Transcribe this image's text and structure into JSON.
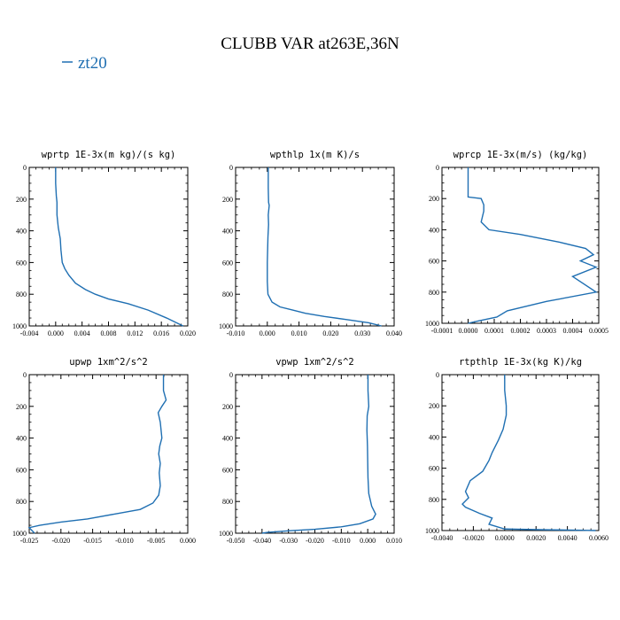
{
  "figure": {
    "title": "CLUBB VAR at263E,36N",
    "legend": "zt20",
    "series_color": "#1f6fb2"
  },
  "chart_data": [
    {
      "type": "line",
      "title": "wprtp  1E-3x(m kg)/(s kg)",
      "xlim": [
        -0.004,
        0.02
      ],
      "ylim": [
        1000,
        0
      ],
      "x_ticks": [
        "-0.004",
        "0.000",
        "0.004",
        "0.008",
        "0.012",
        "0.016",
        "0.020"
      ],
      "y_ticks": [
        "0",
        "200",
        "400",
        "600",
        "800",
        "1000"
      ],
      "series": [
        {
          "x": [
            0.0,
            0.0,
            0.0,
            0.0001,
            0.0002,
            0.0002,
            0.0004,
            0.0007,
            0.0008,
            0.001,
            0.0014,
            0.002,
            0.003,
            0.0045,
            0.006,
            0.008,
            0.011,
            0.014,
            0.0168,
            0.0188,
            0.0193
          ],
          "y": [
            0,
            50,
            100,
            180,
            220,
            300,
            380,
            450,
            520,
            600,
            640,
            680,
            730,
            770,
            800,
            830,
            860,
            900,
            950,
            990,
            1000
          ]
        }
      ]
    },
    {
      "type": "line",
      "title": "wpthlp  1x(m K)/s",
      "xlim": [
        -0.01,
        0.04
      ],
      "ylim": [
        1000,
        0
      ],
      "x_ticks": [
        "-0.010",
        "0.000",
        "0.010",
        "0.020",
        "0.030",
        "0.040"
      ],
      "y_ticks": [
        "0",
        "200",
        "400",
        "600",
        "800",
        "1000"
      ],
      "series": [
        {
          "x": [
            0.0003,
            0.0003,
            0.0003,
            0.0004,
            0.0006,
            0.0003,
            0.0004,
            0.0002,
            0.0001,
            0.0,
            0.0,
            0.0,
            0.0002,
            0.0015,
            0.004,
            0.008,
            0.012,
            0.018,
            0.025,
            0.032,
            0.036
          ],
          "y": [
            0,
            60,
            130,
            220,
            240,
            300,
            360,
            440,
            520,
            600,
            650,
            720,
            800,
            850,
            880,
            900,
            920,
            940,
            960,
            980,
            1000
          ]
        }
      ]
    },
    {
      "type": "line",
      "title": "wprcp  1E-3x(m/s) (kg/kg)",
      "xlim": [
        -0.0001,
        0.0005
      ],
      "ylim": [
        1000,
        0
      ],
      "x_ticks": [
        "-0.0001",
        "0.0000",
        "0.0001",
        "0.0002",
        "0.0003",
        "0.0004",
        "0.0005"
      ],
      "y_ticks": [
        "0",
        "200",
        "400",
        "600",
        "800",
        "1000"
      ],
      "series": [
        {
          "x": [
            0.0,
            0.0,
            0.0,
            5e-05,
            6e-05,
            6e-05,
            5e-05,
            8e-05,
            0.0002,
            0.00035,
            0.00045,
            0.00048,
            0.00043,
            0.00049,
            0.0004,
            0.00049,
            0.0003,
            0.00015,
            0.00011,
            4e-05,
            0.0
          ],
          "y": [
            0,
            100,
            190,
            200,
            240,
            280,
            350,
            400,
            430,
            480,
            520,
            560,
            600,
            640,
            700,
            800,
            860,
            920,
            960,
            985,
            1000
          ]
        }
      ]
    },
    {
      "type": "line",
      "title": "upwp  1xm^2/s^2",
      "xlim": [
        -0.025,
        0.005
      ],
      "ylim": [
        1000,
        0
      ],
      "x_ticks": [
        "-0.025",
        "-0.020",
        "-0.015",
        "-0.010",
        "-0.005",
        "0.000"
      ],
      "y_ticks": [
        "0",
        "200",
        "400",
        "600",
        "800",
        "1000"
      ],
      "series": [
        {
          "x": [
            0.0004,
            0.0004,
            0.0009,
            0.0001,
            -0.0006,
            -0.0002,
            0.0001,
            -0.0003,
            -0.0005,
            -0.0002,
            -0.0004,
            -0.0002,
            -0.0005,
            -0.0016,
            -0.004,
            -0.009,
            -0.014,
            -0.019,
            -0.023,
            -0.025,
            -0.024
          ],
          "y": [
            0,
            100,
            160,
            200,
            240,
            300,
            400,
            450,
            500,
            560,
            620,
            700,
            760,
            810,
            850,
            880,
            910,
            930,
            950,
            965,
            1000
          ]
        }
      ]
    },
    {
      "type": "line",
      "title": "vpwp  1xm^2/s^2",
      "xlim": [
        -0.05,
        0.01
      ],
      "ylim": [
        1000,
        0
      ],
      "x_ticks": [
        "-0.050",
        "-0.040",
        "-0.030",
        "-0.020",
        "-0.010",
        "0.000",
        "0.010"
      ],
      "y_ticks": [
        "0",
        "200",
        "400",
        "600",
        "800",
        "1000"
      ],
      "series": [
        {
          "x": [
            0.0001,
            0.0001,
            0.0004,
            -0.0002,
            -0.0003,
            -0.0001,
            0.0,
            0.0001,
            0.0004,
            0.0015,
            0.003,
            0.002,
            -0.003,
            -0.01,
            -0.02,
            -0.03,
            -0.038,
            -0.04
          ],
          "y": [
            0,
            100,
            200,
            260,
            350,
            450,
            550,
            650,
            750,
            830,
            880,
            910,
            940,
            960,
            975,
            985,
            995,
            1000
          ]
        }
      ]
    },
    {
      "type": "line",
      "title": "rtpthlp  1E-3x(kg K)/kg",
      "xlim": [
        -0.004,
        0.006
      ],
      "ylim": [
        1000,
        0
      ],
      "x_ticks": [
        "-0.0040",
        "-0.0020",
        "0.0000",
        "0.0020",
        "0.0040",
        "0.0060"
      ],
      "y_ticks": [
        "0",
        "200",
        "400",
        "600",
        "800",
        "1000"
      ],
      "series": [
        {
          "x": [
            0.0,
            0.0,
            0.0001,
            0.0001,
            -0.0001,
            -0.0004,
            -0.0008,
            -0.001,
            -0.0014,
            -0.0022,
            -0.0025,
            -0.0023,
            -0.0027,
            -0.0025,
            -0.0016,
            -0.0008,
            -0.001,
            0.0,
            0.0025,
            0.005,
            0.0058
          ],
          "y": [
            0,
            100,
            200,
            260,
            350,
            420,
            500,
            550,
            620,
            680,
            750,
            790,
            830,
            850,
            890,
            920,
            960,
            990,
            995,
            998,
            1000
          ]
        }
      ]
    }
  ]
}
